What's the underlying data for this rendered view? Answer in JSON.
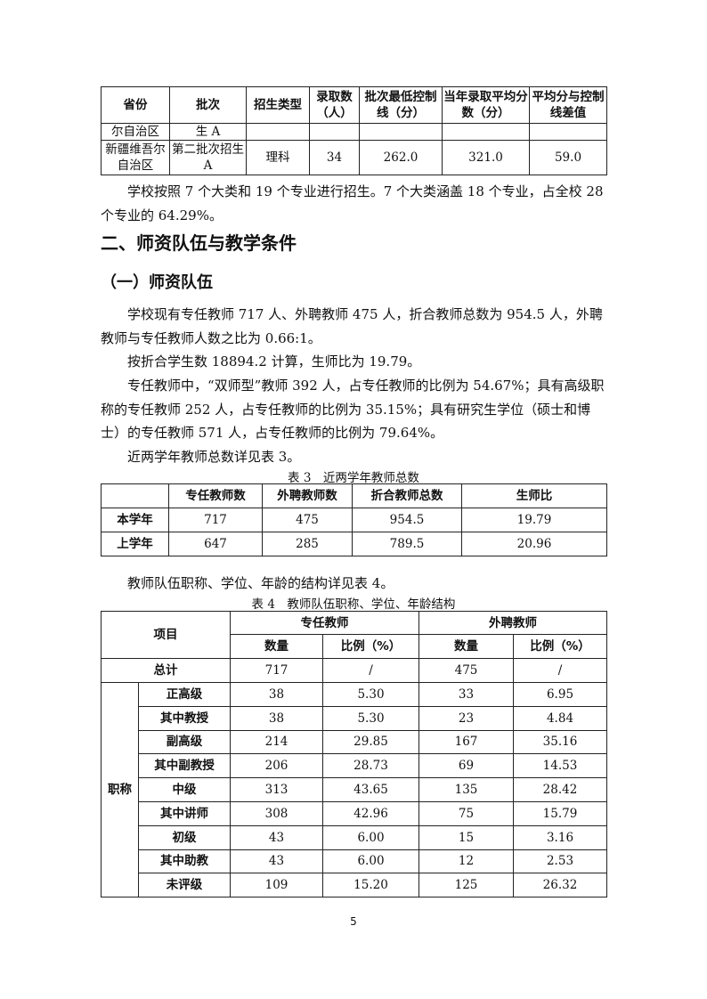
{
  "table_admission": {
    "headers": [
      "省份",
      "批次",
      "招生类型",
      "录取数（人）",
      "批次最低控制线（分）",
      "当年录取平均分数（分）",
      "平均分与控制线差值"
    ],
    "rows": [
      [
        "尔自治区",
        "生 A",
        "",
        "",
        "",
        "",
        ""
      ],
      [
        "新疆维吾尔自治区",
        "第二批次招生 A",
        "理科",
        "34",
        "262.0",
        "321.0",
        "59.0"
      ]
    ]
  },
  "para_majors": "学校按照 7 个大类和 19 个专业进行招生。7 个大类涵盖 18 个专业，占全校 28 个专业的 64.29%。",
  "heading_2": "二、师资队伍与教学条件",
  "heading_2_1": "（一）师资队伍",
  "paragraphs": [
    "学校现有专任教师 717 人、外聘教师 475 人，折合教师总数为 954.5 人，外聘教师与专任教师人数之比为 0.66:1。",
    "按折合学生数 18894.2 计算，生师比为 19.79。",
    "专任教师中，“双师型”教师 392 人，占专任教师的比例为 54.67%；具有高级职称的专任教师 252 人，占专任教师的比例为 35.15%；具有研究生学位（硕士和博士）的专任教师 571 人，占专任教师的比例为 79.64%。",
    "近两学年教师总数详见表 3。"
  ],
  "table3": {
    "caption": "表 3　近两学年教师总数",
    "headers": [
      "",
      "专任教师数",
      "外聘教师数",
      "折合教师总数",
      "生师比"
    ],
    "rows": [
      [
        "本学年",
        "717",
        "475",
        "954.5",
        "19.79"
      ],
      [
        "上学年",
        "647",
        "285",
        "789.5",
        "20.96"
      ]
    ]
  },
  "para_table4": "教师队伍职称、学位、年龄的结构详见表 4。",
  "table4": {
    "caption": "表 4　教师队伍职称、学位、年龄结构",
    "item_label": "项目",
    "group_fulltime": "专任教师",
    "group_external": "外聘教师",
    "sub_headers": [
      "数量",
      "比例（%）",
      "数量",
      "比例（%）"
    ],
    "total": [
      "总计",
      "717",
      "/",
      "475",
      "/"
    ],
    "category": "职称",
    "rows": [
      [
        "正高级",
        "38",
        "5.30",
        "33",
        "6.95"
      ],
      [
        "其中教授",
        "38",
        "5.30",
        "23",
        "4.84"
      ],
      [
        "副高级",
        "214",
        "29.85",
        "167",
        "35.16"
      ],
      [
        "其中副教授",
        "206",
        "28.73",
        "69",
        "14.53"
      ],
      [
        "中级",
        "313",
        "43.65",
        "135",
        "28.42"
      ],
      [
        "其中讲师",
        "308",
        "42.96",
        "75",
        "15.79"
      ],
      [
        "初级",
        "43",
        "6.00",
        "15",
        "3.16"
      ],
      [
        "其中助教",
        "43",
        "6.00",
        "12",
        "2.53"
      ],
      [
        "未评级",
        "109",
        "15.20",
        "125",
        "26.32"
      ]
    ]
  },
  "page_number": "5"
}
